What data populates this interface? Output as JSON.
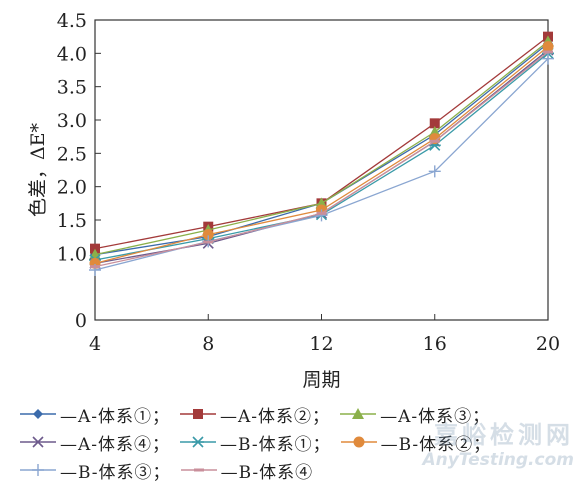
{
  "chart_data": {
    "type": "line",
    "xlabel": "周期",
    "ylabel": "色差，ΔE*",
    "x": [
      4,
      8,
      12,
      16,
      20
    ],
    "xlim": [
      4,
      20
    ],
    "ylim": [
      0,
      4.5
    ],
    "xticks": [
      "4",
      "8",
      "12",
      "16",
      "20"
    ],
    "yticks": [
      "0",
      "1.0",
      "1.5",
      "2.0",
      "2.5",
      "3.0",
      "3.5",
      "4.0",
      "4.5"
    ],
    "grid": false,
    "legend_position": "bottom",
    "series": [
      {
        "name": "A-体系①",
        "values": [
          0.98,
          1.25,
          1.75,
          2.78,
          4.15
        ],
        "color": "#3b6bab",
        "marker": "diamond"
      },
      {
        "name": "A-体系②",
        "values": [
          1.07,
          1.4,
          1.75,
          2.95,
          4.25
        ],
        "color": "#a33a3a",
        "marker": "square"
      },
      {
        "name": "A-体系③",
        "values": [
          0.98,
          1.35,
          1.75,
          2.82,
          4.18
        ],
        "color": "#8bb04a",
        "marker": "triangle"
      },
      {
        "name": "A-体系④",
        "values": [
          0.85,
          1.15,
          1.6,
          2.68,
          4.05
        ],
        "color": "#6d5a8c",
        "marker": "x"
      },
      {
        "name": "B-体系①",
        "values": [
          0.9,
          1.22,
          1.58,
          2.62,
          4.0
        ],
        "color": "#3a9aa8",
        "marker": "asterisk"
      },
      {
        "name": "B-体系②",
        "values": [
          0.85,
          1.28,
          1.65,
          2.72,
          4.1
        ],
        "color": "#e08a3c",
        "marker": "circle"
      },
      {
        "name": "B-体系③",
        "values": [
          0.75,
          1.18,
          1.57,
          2.23,
          3.92
        ],
        "color": "#8aa6d1",
        "marker": "plus"
      },
      {
        "name": "B-体系④",
        "values": [
          0.8,
          1.17,
          1.6,
          2.68,
          4.02
        ],
        "color": "#c98f9b",
        "marker": "dash"
      }
    ]
  },
  "legend_rows": [
    [
      {
        "label": "—A-体系①；",
        "series": 0
      },
      {
        "label": "—A-体系②；",
        "series": 1
      },
      {
        "label": "—A-体系③；",
        "series": 2
      }
    ],
    [
      {
        "label": "—A-体系④；",
        "series": 3
      },
      {
        "label": "—B-体系①；",
        "series": 4
      },
      {
        "label": "—B-体系②；",
        "series": 5
      }
    ],
    [
      {
        "label": "—B-体系③；",
        "series": 6
      },
      {
        "label": "—B-体系④",
        "series": 7
      }
    ]
  ],
  "watermark": {
    "cn": "嘉峪检测网",
    "en": "AnyTesting.com"
  }
}
